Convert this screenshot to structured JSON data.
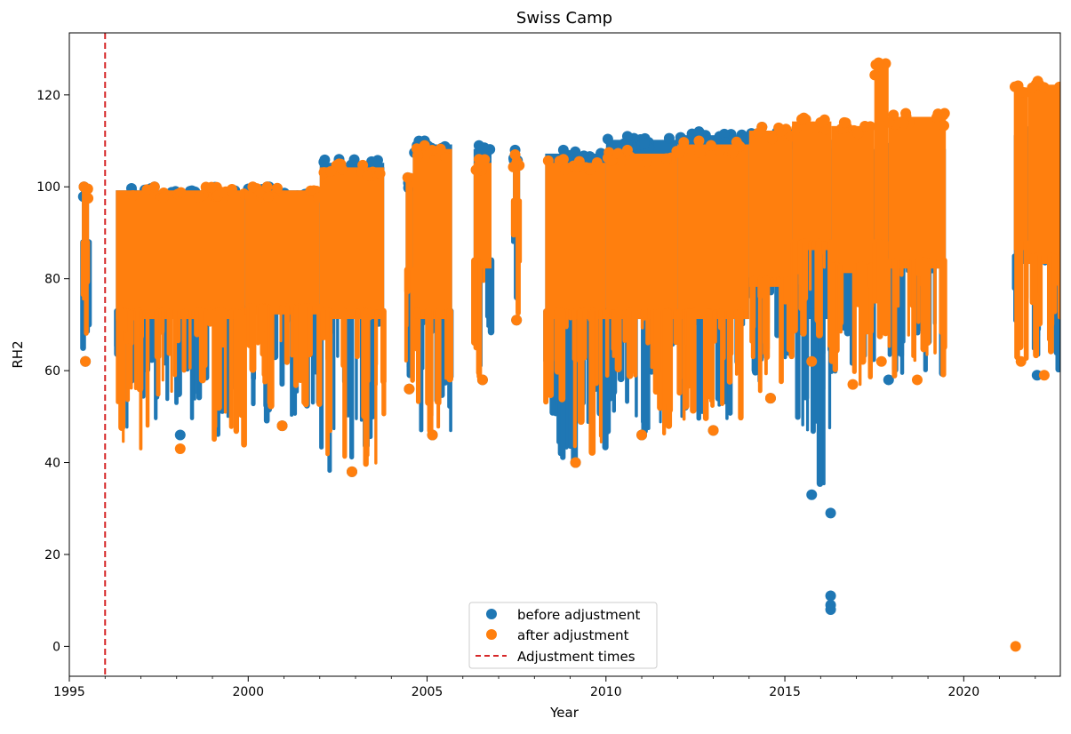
{
  "chart_data": {
    "type": "scatter",
    "title": "Swiss Camp",
    "xlabel": "Year",
    "ylabel": "RH2",
    "xlim": [
      1995.0,
      2022.7
    ],
    "ylim": [
      -6.5,
      133.5
    ],
    "x_ticks": [
      "1995",
      "2000",
      "2005",
      "2010",
      "2015",
      "2020"
    ],
    "x_tick_values": [
      1995,
      2000,
      2005,
      2010,
      2015,
      2020
    ],
    "y_ticks": [
      "0",
      "20",
      "40",
      "60",
      "80",
      "100",
      "120"
    ],
    "y_tick_values": [
      0,
      20,
      40,
      60,
      80,
      100,
      120
    ],
    "grid": false,
    "legend_position": "bottom-center",
    "legend": [
      "before adjustment",
      "after adjustment",
      "Adjustment times"
    ],
    "colors": {
      "before": "#1f77b4",
      "after": "#ff7f0e",
      "adjustment_line": "#d62728"
    },
    "adjustment_times": [
      1996.0
    ],
    "series": [
      {
        "name": "before adjustment",
        "segments": [
          {
            "x0": 1995.35,
            "x1": 1995.55,
            "y_min": 62,
            "y_max": 100
          },
          {
            "x0": 1996.3,
            "x1": 1999.9,
            "y_min": 46,
            "y_max": 100
          },
          {
            "x0": 1999.9,
            "x1": 2002.0,
            "y_min": 48,
            "y_max": 100
          },
          {
            "x0": 2002.0,
            "x1": 2003.8,
            "y_min": 38,
            "y_max": 106
          },
          {
            "x0": 2004.4,
            "x1": 2004.6,
            "y_min": 56,
            "y_max": 102
          },
          {
            "x0": 2004.6,
            "x1": 2005.7,
            "y_min": 46,
            "y_max": 110
          },
          {
            "x0": 2006.3,
            "x1": 2006.8,
            "y_min": 58,
            "y_max": 109
          },
          {
            "x0": 2007.4,
            "x1": 2007.6,
            "y_min": 71,
            "y_max": 108
          },
          {
            "x0": 2008.3,
            "x1": 2010.0,
            "y_min": 40,
            "y_max": 108
          },
          {
            "x0": 2010.0,
            "x1": 2012.0,
            "y_min": 46,
            "y_max": 111
          },
          {
            "x0": 2012.0,
            "x1": 2014.0,
            "y_min": 47,
            "y_max": 112
          },
          {
            "x0": 2014.0,
            "x1": 2015.2,
            "y_min": 54,
            "y_max": 113
          },
          {
            "x0": 2015.2,
            "x1": 2016.3,
            "y_min": 33,
            "y_max": 111
          },
          {
            "x0": 2016.3,
            "x1": 2019.5,
            "y_min": 58,
            "y_max": 109
          },
          {
            "x0": 2021.4,
            "x1": 2022.7,
            "y_min": 59,
            "y_max": 112
          }
        ],
        "outliers": [
          [
            2016.28,
            29
          ],
          [
            2016.28,
            11
          ],
          [
            2016.28,
            9
          ],
          [
            2016.28,
            8
          ]
        ]
      },
      {
        "name": "after adjustment",
        "segments": [
          {
            "x0": 1995.35,
            "x1": 1995.55,
            "y_min": 62,
            "y_max": 100
          },
          {
            "x0": 1996.3,
            "x1": 1999.9,
            "y_min": 43,
            "y_max": 100
          },
          {
            "x0": 1999.9,
            "x1": 2002.0,
            "y_min": 48,
            "y_max": 100
          },
          {
            "x0": 2002.0,
            "x1": 2003.8,
            "y_min": 38,
            "y_max": 105
          },
          {
            "x0": 2004.4,
            "x1": 2004.6,
            "y_min": 56,
            "y_max": 102
          },
          {
            "x0": 2004.6,
            "x1": 2005.7,
            "y_min": 46,
            "y_max": 109
          },
          {
            "x0": 2006.3,
            "x1": 2006.8,
            "y_min": 58,
            "y_max": 106
          },
          {
            "x0": 2007.4,
            "x1": 2007.6,
            "y_min": 71,
            "y_max": 107
          },
          {
            "x0": 2008.3,
            "x1": 2010.0,
            "y_min": 40,
            "y_max": 106
          },
          {
            "x0": 2010.0,
            "x1": 2012.0,
            "y_min": 46,
            "y_max": 108
          },
          {
            "x0": 2012.0,
            "x1": 2014.0,
            "y_min": 47,
            "y_max": 110
          },
          {
            "x0": 2014.0,
            "x1": 2015.2,
            "y_min": 54,
            "y_max": 113
          },
          {
            "x0": 2015.2,
            "x1": 2016.3,
            "y_min": 62,
            "y_max": 115
          },
          {
            "x0": 2016.3,
            "x1": 2017.5,
            "y_min": 57,
            "y_max": 114
          },
          {
            "x0": 2017.5,
            "x1": 2017.9,
            "y_min": 62,
            "y_max": 127
          },
          {
            "x0": 2017.9,
            "x1": 2019.5,
            "y_min": 58,
            "y_max": 116
          },
          {
            "x0": 2021.4,
            "x1": 2021.8,
            "y_min": 62,
            "y_max": 122
          },
          {
            "x0": 2021.8,
            "x1": 2022.7,
            "y_min": 59,
            "y_max": 123
          }
        ],
        "outliers": [
          [
            2021.45,
            0
          ]
        ]
      }
    ]
  }
}
